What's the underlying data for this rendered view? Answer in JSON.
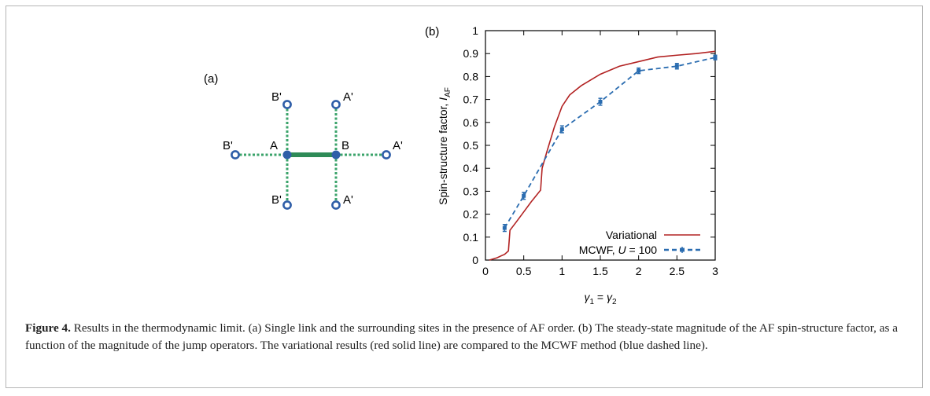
{
  "figure": {
    "caption_label": "Figure 4.",
    "caption_text": "Results in the thermodynamic limit. (a) Single link and the surrounding sites in the presence of AF order. (b) The steady-state magnitude of the AF spin-structure factor, as a function of the magnitude of the jump operators. The variational results (red solid line) are compared to the MCWF method (blue dashed line)."
  },
  "panel_a": {
    "label": "(a)",
    "nodes": {
      "A": "A",
      "B": "B",
      "Ap": "A'",
      "Bp": "B'"
    },
    "colors": {
      "bond": "#2e8b57",
      "dashed": "#3aa36a",
      "node": "#2f5ea8"
    }
  },
  "panel_b": {
    "label": "(b)",
    "colors": {
      "variational": "#b22222",
      "mcwf": "#2a6cb0"
    },
    "legend": {
      "variational": "Variational",
      "mcwf_prefix": "MCWF, ",
      "mcwf_var": "U",
      "mcwf_suffix": " = 100"
    },
    "axis_label_y_main": "Spin-structure factor, ",
    "axis_label_y_sym": "I",
    "axis_label_y_sub": "AF",
    "axis_label_x_g": "γ",
    "axis_label_x_1": "1",
    "axis_label_x_eq": " = ",
    "axis_label_x_2": "2",
    "chart_data": {
      "type": "line",
      "xlim": [
        0,
        3
      ],
      "ylim": [
        0,
        1
      ],
      "x_ticks": [
        "0",
        "0.5",
        "1",
        "1.5",
        "2",
        "2.5",
        "3"
      ],
      "x_tick_values": [
        0,
        0.5,
        1,
        1.5,
        2,
        2.5,
        3
      ],
      "y_ticks": [
        "0",
        "0.1",
        "0.2",
        "0.3",
        "0.4",
        "0.5",
        "0.6",
        "0.7",
        "0.8",
        "0.9",
        "1"
      ],
      "y_tick_values": [
        0,
        0.1,
        0.2,
        0.3,
        0.4,
        0.5,
        0.6,
        0.7,
        0.8,
        0.9,
        1
      ],
      "legend_position": "bottom-right",
      "series": [
        {
          "name": "Variational",
          "style": "solid",
          "x": [
            0.05,
            0.15,
            0.25,
            0.3,
            0.32,
            0.4,
            0.5,
            0.6,
            0.72,
            0.74,
            0.8,
            0.9,
            1.0,
            1.1,
            1.25,
            1.5,
            1.75,
            2.0,
            2.25,
            2.5,
            2.75,
            3.0
          ],
          "y": [
            0.0,
            0.01,
            0.025,
            0.04,
            0.13,
            0.165,
            0.21,
            0.255,
            0.305,
            0.4,
            0.47,
            0.58,
            0.67,
            0.72,
            0.76,
            0.81,
            0.845,
            0.865,
            0.885,
            0.893,
            0.9,
            0.91
          ]
        },
        {
          "name": "MCWF, U = 100",
          "style": "dashed",
          "x": [
            0.25,
            0.5,
            1.0,
            1.5,
            2.0,
            2.5,
            3.0
          ],
          "y": [
            0.14,
            0.28,
            0.57,
            0.69,
            0.825,
            0.845,
            0.883
          ],
          "err": [
            0.015,
            0.015,
            0.015,
            0.015,
            0.012,
            0.012,
            0.01
          ]
        }
      ]
    }
  }
}
